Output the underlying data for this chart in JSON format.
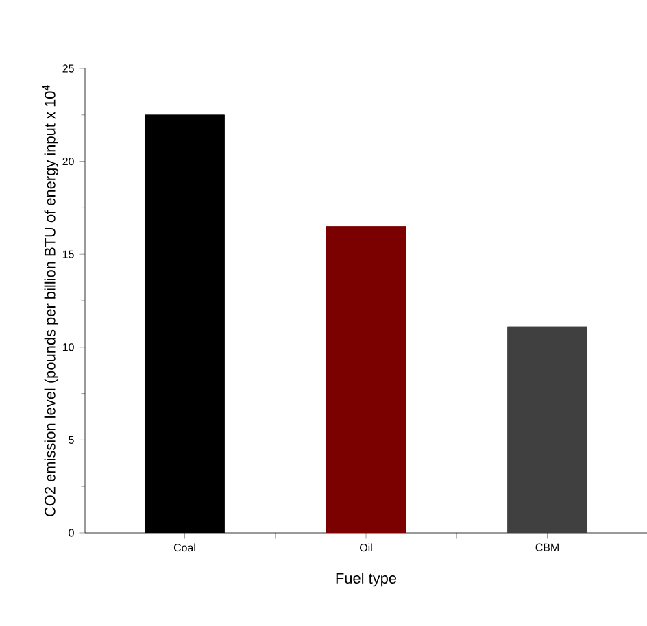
{
  "chart_data": {
    "type": "bar",
    "xlabel": "Fuel type",
    "ylabel": "CO2 emission level (pounds per billion BTU of energy input x 10$^{4}$",
    "categories": [
      "Coal",
      "Oil",
      "CBM"
    ],
    "values": [
      22.5,
      16.5,
      11.1
    ],
    "colors": [
      "#000000",
      "#7b0000",
      "#404040"
    ],
    "ylim": [
      0,
      25
    ],
    "yticks": [
      0,
      5,
      10,
      15,
      20,
      25
    ],
    "grid": false
  }
}
